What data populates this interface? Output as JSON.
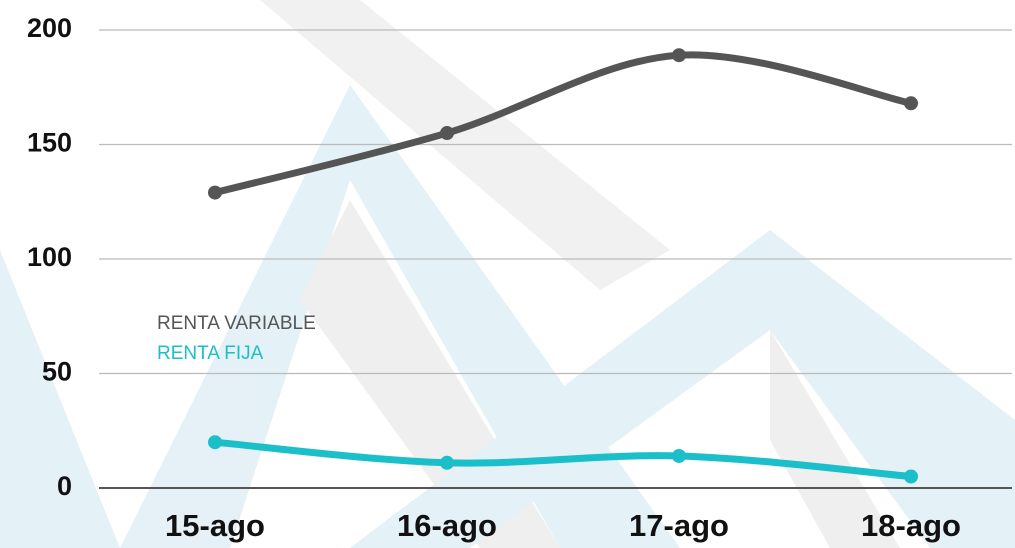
{
  "chart_data": {
    "type": "line",
    "categories": [
      "15-ago",
      "16-ago",
      "17-ago",
      "18-ago"
    ],
    "series": [
      {
        "name": "RENTA VARIABLE",
        "color": "#555555",
        "values": [
          129,
          155,
          189,
          168
        ]
      },
      {
        "name": "RENTA FIJA",
        "color": "#1bbfc9",
        "values": [
          20,
          11,
          14,
          5
        ]
      }
    ],
    "ylim": [
      0,
      200
    ],
    "yticks": [
      0,
      50,
      100,
      150,
      200
    ],
    "grid": true
  }
}
